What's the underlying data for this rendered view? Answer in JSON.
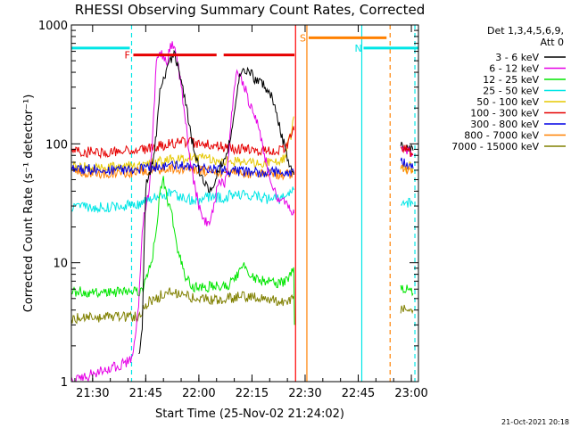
{
  "chart_data": {
    "type": "line",
    "title": "RHESSI Observing Summary Count Rates, Corrected",
    "xlabel": "Start Time (25-Nov-02 21:24:02)",
    "ylabel": "Corrected Count Rate (s⁻¹ detector⁻¹)",
    "y_scale": "log",
    "ylim": [
      1,
      1000
    ],
    "xlim_minutes": [
      0,
      98
    ],
    "x_ticks": [
      {
        "label": "21:30",
        "min": 6
      },
      {
        "label": "21:45",
        "min": 21
      },
      {
        "label": "22:00",
        "min": 36
      },
      {
        "label": "22:15",
        "min": 51
      },
      {
        "label": "22:30",
        "min": 66
      },
      {
        "label": "22:45",
        "min": 81
      },
      {
        "label": "23:00",
        "min": 96
      }
    ],
    "y_ticks": [
      {
        "label": "1",
        "value": 1
      },
      {
        "label": "10",
        "value": 10
      },
      {
        "label": "100",
        "value": 100
      },
      {
        "label": "1000",
        "value": 1000
      }
    ],
    "legend_header": [
      "Det 1,3,4,5,6,9,",
      "Att 0"
    ],
    "legend_position": "right",
    "series": [
      {
        "name": "3 - 6 keV",
        "color": "#000000",
        "points": [
          [
            19,
            1.6
          ],
          [
            20,
            3
          ],
          [
            21,
            45
          ],
          [
            22,
            55
          ],
          [
            23,
            70
          ],
          [
            24,
            120
          ],
          [
            25,
            300
          ],
          [
            26,
            360
          ],
          [
            27,
            420
          ],
          [
            28,
            500
          ],
          [
            29,
            560
          ],
          [
            30,
            480
          ],
          [
            31,
            350
          ],
          [
            32,
            250
          ],
          [
            33,
            160
          ],
          [
            34,
            110
          ],
          [
            35,
            80
          ],
          [
            36,
            62
          ],
          [
            37,
            50
          ],
          [
            38,
            45
          ],
          [
            39,
            43
          ],
          [
            40,
            45
          ],
          [
            41,
            55
          ],
          [
            42,
            65
          ],
          [
            43,
            70
          ],
          [
            44,
            80
          ],
          [
            45,
            120
          ],
          [
            46,
            200
          ],
          [
            47,
            320
          ],
          [
            48,
            400
          ],
          [
            49,
            420
          ],
          [
            50,
            400
          ],
          [
            51,
            380
          ],
          [
            52,
            350
          ],
          [
            53,
            330
          ],
          [
            54,
            320
          ],
          [
            55,
            300
          ],
          [
            56,
            270
          ],
          [
            57,
            230
          ],
          [
            58,
            180
          ],
          [
            59,
            130
          ],
          [
            60,
            100
          ],
          [
            61,
            75
          ],
          [
            62,
            62
          ],
          [
            62.8,
            55
          ]
        ]
      },
      {
        "name": "6 - 12 keV",
        "color": "#e600e6",
        "points": [
          [
            0,
            1
          ],
          [
            17,
            1.5
          ],
          [
            18,
            2.5
          ],
          [
            19,
            4
          ],
          [
            20,
            20
          ],
          [
            21,
            30
          ],
          [
            22,
            40
          ],
          [
            23,
            120
          ],
          [
            24,
            500
          ],
          [
            25,
            600
          ],
          [
            26,
            550
          ],
          [
            27,
            500
          ],
          [
            28,
            650
          ],
          [
            29,
            700
          ],
          [
            30,
            500
          ],
          [
            31,
            300
          ],
          [
            32,
            180
          ],
          [
            33,
            100
          ],
          [
            34,
            60
          ],
          [
            35,
            42
          ],
          [
            36,
            30
          ],
          [
            37,
            25
          ],
          [
            38,
            22
          ],
          [
            39,
            23
          ],
          [
            40,
            28
          ],
          [
            41,
            40
          ],
          [
            42,
            50
          ],
          [
            43,
            45
          ],
          [
            44,
            55
          ],
          [
            45,
            150
          ],
          [
            46,
            300
          ],
          [
            47,
            420
          ],
          [
            48,
            350
          ],
          [
            49,
            300
          ],
          [
            50,
            220
          ],
          [
            51,
            200
          ],
          [
            52,
            170
          ],
          [
            53,
            130
          ],
          [
            54,
            95
          ],
          [
            55,
            70
          ],
          [
            56,
            52
          ],
          [
            57,
            42
          ],
          [
            58,
            36
          ],
          [
            59,
            35
          ],
          [
            60,
            34
          ],
          [
            61,
            30
          ],
          [
            62,
            27
          ],
          [
            62.8,
            26
          ]
        ]
      },
      {
        "name": "12 - 25 keV",
        "color": "#00e600",
        "points": [
          [
            0,
            5.7
          ],
          [
            19,
            5.7
          ],
          [
            20,
            6
          ],
          [
            21,
            7
          ],
          [
            22,
            9
          ],
          [
            23,
            12
          ],
          [
            24,
            20
          ],
          [
            25,
            40
          ],
          [
            26,
            50
          ],
          [
            27,
            35
          ],
          [
            28,
            28
          ],
          [
            29,
            20
          ],
          [
            30,
            13
          ],
          [
            31,
            10
          ],
          [
            32,
            8
          ],
          [
            33,
            7
          ],
          [
            34,
            6.5
          ],
          [
            35,
            6.2
          ],
          [
            40,
            6.3
          ],
          [
            44,
            6.5
          ],
          [
            46,
            7
          ],
          [
            47,
            8
          ],
          [
            48,
            10
          ],
          [
            49,
            9
          ],
          [
            50,
            8
          ],
          [
            51,
            7.5
          ],
          [
            52,
            7.5
          ],
          [
            54,
            7.2
          ],
          [
            56,
            7
          ],
          [
            58,
            6.8
          ],
          [
            60,
            7
          ],
          [
            62,
            8
          ],
          [
            62.8,
            9
          ],
          [
            63,
            3
          ]
        ]
      },
      {
        "name": "25 - 50 keV",
        "color": "#00e6e6",
        "points": [
          [
            0,
            30
          ],
          [
            10,
            29
          ],
          [
            19,
            31
          ],
          [
            20,
            33
          ],
          [
            22,
            34
          ],
          [
            24,
            36
          ],
          [
            26,
            38
          ],
          [
            28,
            38
          ],
          [
            30,
            36
          ],
          [
            32,
            35
          ],
          [
            34,
            34
          ],
          [
            36,
            34
          ],
          [
            38,
            36
          ],
          [
            40,
            36
          ],
          [
            42,
            35
          ],
          [
            44,
            36
          ],
          [
            46,
            38
          ],
          [
            48,
            38
          ],
          [
            50,
            37
          ],
          [
            52,
            36
          ],
          [
            54,
            35
          ],
          [
            56,
            34
          ],
          [
            58,
            34
          ],
          [
            60,
            35
          ],
          [
            62,
            40
          ],
          [
            62.8,
            42
          ]
        ]
      },
      {
        "name": "50 - 100 keV",
        "color": "#e6c800",
        "points": [
          [
            0,
            64
          ],
          [
            10,
            63
          ],
          [
            19,
            65
          ],
          [
            25,
            72
          ],
          [
            30,
            75
          ],
          [
            36,
            76
          ],
          [
            40,
            74
          ],
          [
            44,
            72
          ],
          [
            48,
            70
          ],
          [
            52,
            70
          ],
          [
            56,
            70
          ],
          [
            60,
            75
          ],
          [
            62,
            120
          ],
          [
            62.8,
            170
          ]
        ]
      },
      {
        "name": "100 - 300 keV",
        "color": "#e60000",
        "points": [
          [
            0,
            86
          ],
          [
            10,
            85
          ],
          [
            19,
            88
          ],
          [
            24,
            95
          ],
          [
            28,
            100
          ],
          [
            32,
            103
          ],
          [
            36,
            102
          ],
          [
            40,
            98
          ],
          [
            44,
            93
          ],
          [
            48,
            90
          ],
          [
            52,
            88
          ],
          [
            56,
            86
          ],
          [
            60,
            90
          ],
          [
            61,
            100
          ],
          [
            62,
            115
          ],
          [
            62.8,
            130
          ]
        ]
      },
      {
        "name": "300 - 800 keV",
        "color": "#0000e6",
        "points": [
          [
            0,
            62
          ],
          [
            10,
            60
          ],
          [
            19,
            62
          ],
          [
            24,
            64
          ],
          [
            30,
            66
          ],
          [
            36,
            64
          ],
          [
            40,
            62
          ],
          [
            44,
            60
          ],
          [
            48,
            59
          ],
          [
            52,
            58
          ],
          [
            56,
            58
          ],
          [
            60,
            58
          ],
          [
            62,
            58
          ],
          [
            62.8,
            57
          ]
        ]
      },
      {
        "name": "800 - 7000 keV",
        "color": "#ff8000",
        "points": [
          [
            0,
            58
          ],
          [
            10,
            57
          ],
          [
            19,
            58
          ],
          [
            24,
            60
          ],
          [
            30,
            62
          ],
          [
            36,
            60
          ],
          [
            40,
            58
          ],
          [
            44,
            57
          ],
          [
            48,
            56
          ],
          [
            52,
            56
          ],
          [
            56,
            55
          ],
          [
            60,
            55
          ],
          [
            62,
            55
          ],
          [
            62.8,
            55
          ]
        ]
      },
      {
        "name": "7000 - 15000 keV",
        "color": "#808000",
        "points": [
          [
            0,
            3.4
          ],
          [
            10,
            3.5
          ],
          [
            19,
            3.5
          ],
          [
            20,
            4
          ],
          [
            22,
            4.8
          ],
          [
            24,
            5
          ],
          [
            26,
            5.5
          ],
          [
            28,
            5.7
          ],
          [
            30,
            5.5
          ],
          [
            32,
            5.3
          ],
          [
            36,
            5
          ],
          [
            40,
            4.9
          ],
          [
            44,
            5
          ],
          [
            48,
            5.2
          ],
          [
            52,
            5.1
          ],
          [
            56,
            4.9
          ],
          [
            60,
            4.8
          ],
          [
            62.8,
            5
          ]
        ]
      }
    ],
    "series_after_gap": [
      {
        "name": "3 - 6 keV",
        "points": [
          [
            93,
            95
          ],
          [
            95,
            90
          ],
          [
            96.5,
            88
          ]
        ]
      },
      {
        "name": "6 - 12 keV",
        "points": [
          [
            93,
            90
          ],
          [
            95,
            85
          ],
          [
            96.5,
            80
          ]
        ]
      },
      {
        "name": "12 - 25 keV",
        "points": [
          [
            93,
            6
          ],
          [
            95,
            6
          ],
          [
            96.5,
            5.5
          ]
        ]
      },
      {
        "name": "25 - 50 keV",
        "points": [
          [
            93,
            33
          ],
          [
            95,
            32
          ],
          [
            96.5,
            31
          ]
        ]
      },
      {
        "name": "50 - 100 keV",
        "points": [
          [
            93,
            65
          ],
          [
            95,
            64
          ],
          [
            96.5,
            63
          ]
        ]
      },
      {
        "name": "100 - 300 keV",
        "points": [
          [
            93,
            95
          ],
          [
            95,
            88
          ],
          [
            96.5,
            82
          ]
        ]
      },
      {
        "name": "300 - 800 keV",
        "points": [
          [
            93,
            70
          ],
          [
            95,
            66
          ],
          [
            96.5,
            62
          ]
        ]
      },
      {
        "name": "800 - 7000 keV",
        "points": [
          [
            93,
            62
          ],
          [
            95,
            60
          ],
          [
            96.5,
            58
          ]
        ]
      },
      {
        "name": "7000 - 15000 keV",
        "points": [
          [
            93,
            4
          ],
          [
            95,
            4
          ],
          [
            96.5,
            4
          ]
        ]
      }
    ],
    "flag_bars": [
      {
        "label": "",
        "color": "#00e6e6",
        "x_start": 0,
        "x_end": 16.5,
        "y": 640
      },
      {
        "label": "N",
        "color": "#00e6e6",
        "x_start": 82.5,
        "x_end": 98,
        "y": 640
      },
      {
        "label": "F",
        "color": "#e60000",
        "x_start": 17.5,
        "x_end": 41,
        "y": 560
      },
      {
        "label": "",
        "color": "#e60000",
        "x_start": 43,
        "x_end": 63,
        "y": 560
      },
      {
        "label": "S",
        "color": "#ff8000",
        "x_start": 67,
        "x_end": 89,
        "y": 780
      }
    ],
    "vertical_markers": [
      {
        "x": 17,
        "color": "#00e6e6",
        "style": "dashed"
      },
      {
        "x": 63.3,
        "color": "#ff0000",
        "style": "solid"
      },
      {
        "x": 66.5,
        "color": "#ff8000",
        "style": "solid"
      },
      {
        "x": 82,
        "color": "#00e6e6",
        "style": "solid"
      },
      {
        "x": 90,
        "color": "#ff8000",
        "style": "dashed"
      },
      {
        "x": 97,
        "color": "#00e6e6",
        "style": "dashed"
      }
    ],
    "timestamp": "21-Oct-2021 20:18"
  }
}
